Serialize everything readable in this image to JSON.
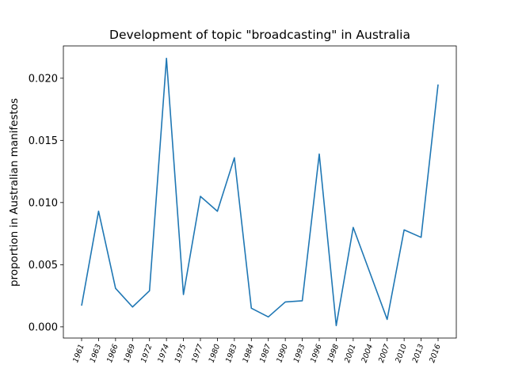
{
  "chart_data": {
    "type": "line",
    "title": "Development of topic \"broadcasting\" in Australia",
    "xlabel": "",
    "ylabel": "proportion in Australian manifestos",
    "categories": [
      "1961",
      "1963",
      "1966",
      "1969",
      "1972",
      "1974",
      "1975",
      "1977",
      "1980",
      "1983",
      "1984",
      "1987",
      "1990",
      "1993",
      "1996",
      "1998",
      "2001",
      "2004",
      "2007",
      "2010",
      "2013",
      "2016"
    ],
    "series": [
      {
        "values": [
          0.0017,
          0.0093,
          0.0031,
          0.0016,
          0.0029,
          0.0216,
          0.0026,
          0.0105,
          0.0093,
          0.0136,
          0.0015,
          0.0008,
          0.002,
          0.0021,
          0.0139,
          0.0001,
          0.008,
          0.0043,
          0.0006,
          0.0078,
          0.0072,
          0.0195
        ],
        "color": "#1f77b4"
      }
    ],
    "ylim": [
      -0.0009,
      0.0226
    ],
    "yticks": [
      "0.000",
      "0.005",
      "0.010",
      "0.015",
      "0.020"
    ],
    "grid": false,
    "legend": "none"
  }
}
